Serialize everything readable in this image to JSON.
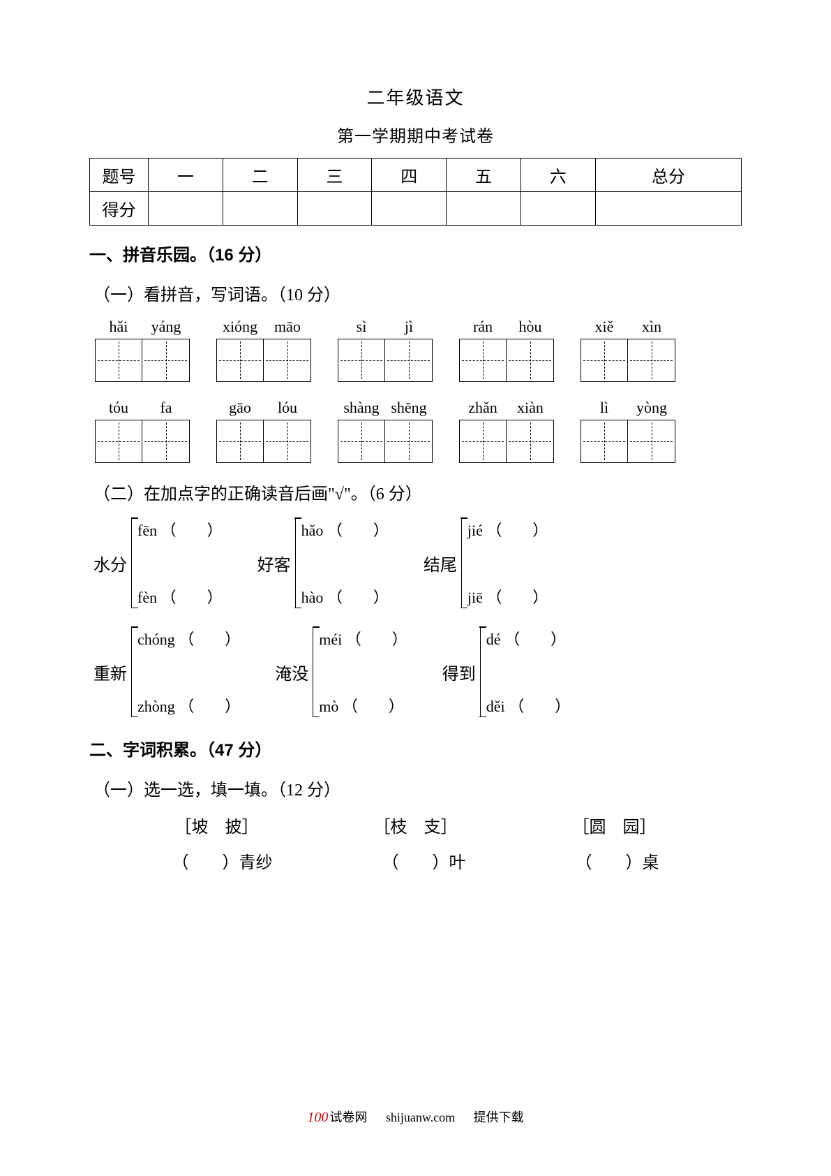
{
  "colors": {
    "text": "#000000",
    "bg": "#ffffff",
    "logo_red": "#d00000"
  },
  "fonts": {
    "body": "SimSun",
    "heading": "SimHei",
    "pinyin": "Times New Roman",
    "title_size": 26,
    "subtitle_size": 24,
    "body_size": 24
  },
  "header": {
    "title": "二年级语文",
    "subtitle": "第一学期期中考试卷"
  },
  "score_table": {
    "row1_label": "题号",
    "row2_label": "得分",
    "cols": [
      "一",
      "二",
      "三",
      "四",
      "五",
      "六",
      "总分"
    ]
  },
  "section1": {
    "heading": "一、拼音乐园。（16 分）",
    "part1": {
      "heading": "（一）看拼音，写词语。（10 分）",
      "row1": [
        {
          "p": [
            "hǎi",
            "yáng"
          ]
        },
        {
          "p": [
            "xióng",
            "māo"
          ]
        },
        {
          "p": [
            "sì",
            "jì"
          ]
        },
        {
          "p": [
            "rán",
            "hòu"
          ]
        },
        {
          "p": [
            "xiě",
            "xìn"
          ]
        }
      ],
      "row2": [
        {
          "p": [
            "tóu",
            "fa"
          ]
        },
        {
          "p": [
            "gāo",
            "lóu"
          ]
        },
        {
          "p": [
            "shàng",
            "shēng"
          ]
        },
        {
          "p": [
            "zhǎn",
            "xiàn"
          ]
        },
        {
          "p": [
            "lì",
            "yòng"
          ]
        }
      ]
    },
    "part2": {
      "heading": "（二）在加点字的正确读音后画\"√\"。（6 分）",
      "row1": [
        {
          "word": "水分",
          "opts": [
            "fēn",
            "fèn"
          ]
        },
        {
          "word": "好客",
          "opts": [
            "hǎo",
            "hào"
          ]
        },
        {
          "word": "结尾",
          "opts": [
            "jié",
            "jiē"
          ]
        }
      ],
      "row2": [
        {
          "word": "重新",
          "opts": [
            "chóng",
            "zhòng"
          ]
        },
        {
          "word": "淹没",
          "opts": [
            "méi",
            "mò"
          ]
        },
        {
          "word": "得到",
          "opts": [
            "dé",
            "děi"
          ]
        }
      ]
    }
  },
  "section2": {
    "heading": "二、字词积累。（47 分）",
    "part1": {
      "heading": "（一）选一选，填一填。（12 分）",
      "pairs_row": [
        {
          "a": "坡",
          "b": "披"
        },
        {
          "a": "枝",
          "b": "支"
        },
        {
          "a": "圆",
          "b": "园"
        }
      ],
      "blanks_row": [
        {
          "blank": "（　　）",
          "after": "青纱"
        },
        {
          "blank": "（　　）",
          "after": "叶"
        },
        {
          "blank": "（　　）",
          "after": "桌"
        }
      ]
    }
  },
  "footer": {
    "logo_num": "100",
    "brand": "试卷网",
    "site": "shijuanw.com",
    "tail": "提供下载"
  }
}
